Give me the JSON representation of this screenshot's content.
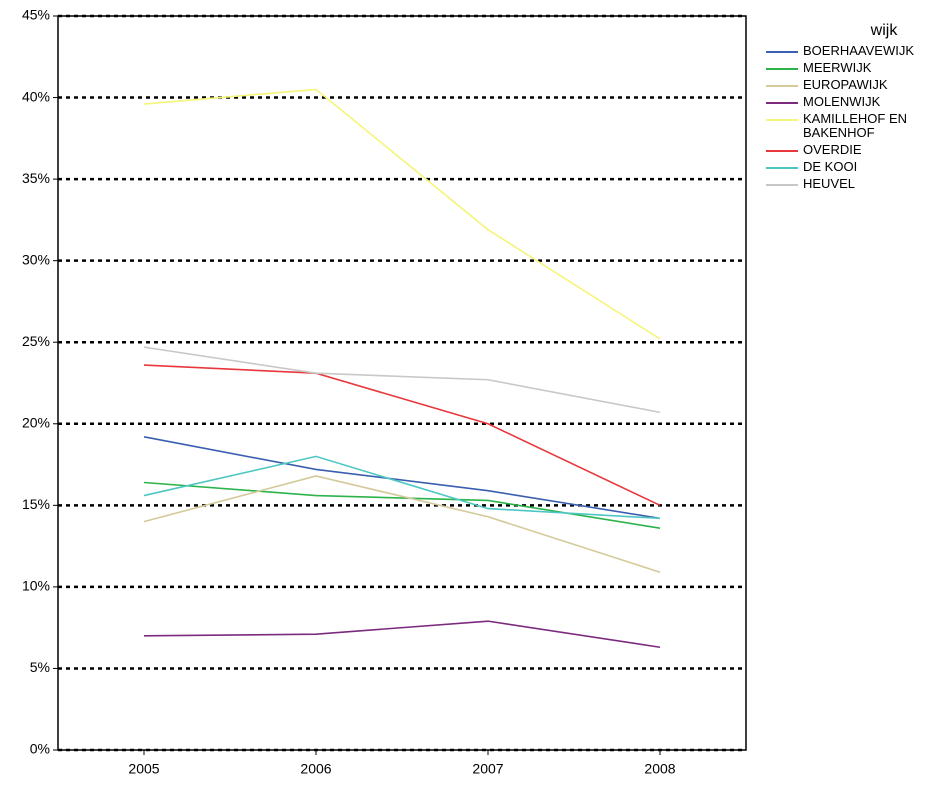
{
  "chart_data": {
    "type": "line",
    "categories": [
      "2005",
      "2006",
      "2007",
      "2008"
    ],
    "series": [
      {
        "name": "BOERHAAVEWIJK",
        "color": "#3a5fb0",
        "values": [
          19.2,
          17.2,
          15.9,
          14.2
        ]
      },
      {
        "name": "MEERWIJK",
        "color": "#2db34a",
        "values": [
          16.4,
          15.6,
          15.3,
          13.6
        ]
      },
      {
        "name": "EUROPAWIJK",
        "color": "#d4c99a",
        "values": [
          14.0,
          16.8,
          14.3,
          10.9
        ]
      },
      {
        "name": "MOLENWIJK",
        "color": "#7b2a7e",
        "values": [
          7.0,
          7.1,
          7.9,
          6.3
        ]
      },
      {
        "name": "KAMILLEHOF EN BAKENHOF",
        "color": "#f5f57a",
        "values": [
          39.6,
          40.5,
          31.9,
          25.2
        ]
      },
      {
        "name": "OVERDIE",
        "color": "#e8383d",
        "values": [
          23.6,
          23.1,
          20.0,
          15.0
        ]
      },
      {
        "name": "DE KOOI",
        "color": "#4ec7c4",
        "values": [
          15.6,
          18.0,
          14.8,
          14.2
        ]
      },
      {
        "name": "HEUVEL",
        "color": "#c8c8c8",
        "values": [
          24.7,
          23.1,
          22.7,
          20.7
        ]
      }
    ],
    "legend_title": "wijk",
    "ylim": [
      0,
      45
    ],
    "yticks": [
      {
        "value": 0,
        "label": "0%"
      },
      {
        "value": 5,
        "label": "5%"
      },
      {
        "value": 10,
        "label": "10%"
      },
      {
        "value": 15,
        "label": "15%"
      },
      {
        "value": 20,
        "label": "20%"
      },
      {
        "value": 25,
        "label": "25%"
      },
      {
        "value": 30,
        "label": "30%"
      },
      {
        "value": 35,
        "label": "35%"
      },
      {
        "value": 40,
        "label": "40%"
      },
      {
        "value": 45,
        "label": "45%"
      }
    ],
    "grid": true
  }
}
